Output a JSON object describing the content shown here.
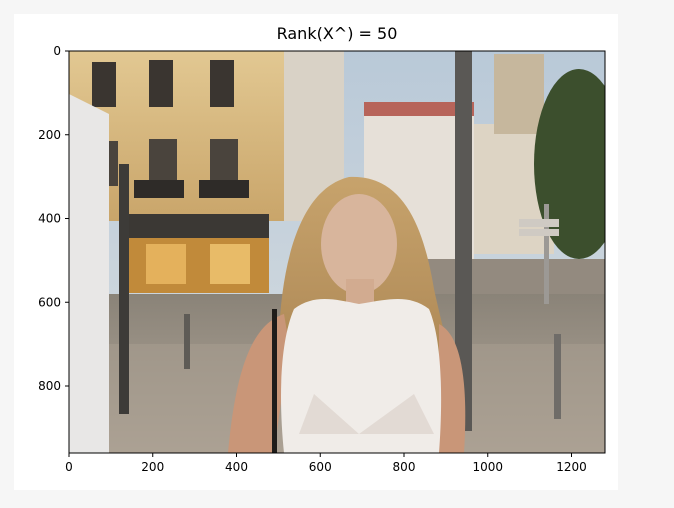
{
  "chart_data": {
    "type": "image",
    "title": "Rank(X^) = 50",
    "xlabel": "",
    "ylabel": "",
    "xlim": [
      0,
      1280
    ],
    "ylim": [
      960,
      0
    ],
    "x_ticks": [
      0,
      200,
      400,
      600,
      800,
      1000,
      1200
    ],
    "y_ticks": [
      0,
      200,
      400,
      600,
      800
    ],
    "grid": false,
    "image_content": "photograph of a woman with long blonde hair in a white lace top standing on a cobblestone street, with yellow building facades, a cafe and street poles in the background"
  }
}
